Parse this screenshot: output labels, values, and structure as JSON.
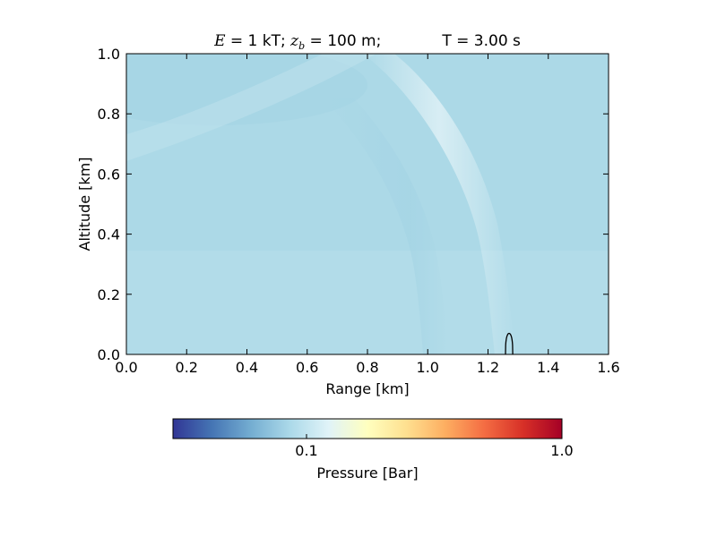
{
  "chart_data": {
    "type": "heatmap",
    "title": {
      "energy_symbol": "E",
      "energy_text": " = 1 kT; ",
      "depth_symbol": "z",
      "depth_subscript": "b",
      "depth_text": " = 100 m;",
      "time_text": "T =  3.00 s"
    },
    "xlabel": "Range [km]",
    "ylabel": "Altitude [km]",
    "xlim": [
      0.0,
      1.6
    ],
    "ylim": [
      0.0,
      1.0
    ],
    "xticks": [
      "0.0",
      "0.2",
      "0.4",
      "0.6",
      "0.8",
      "1.0",
      "1.2",
      "1.4",
      "1.6"
    ],
    "yticks": [
      "0.0",
      "0.2",
      "0.4",
      "0.6",
      "0.8",
      "1.0"
    ],
    "grid": false,
    "field_description_values": {
      "background_pressure_bar": 0.09,
      "shock_front_range_km_at_ground": 1.18,
      "shock_front_range_km_at_top": 0.9
    },
    "contour": {
      "center_range_km": 1.27,
      "max_altitude_km": 0.07,
      "half_width_km": 0.012
    },
    "colorbar": {
      "label": "Pressure [Bar]",
      "scale": "log",
      "min": 0.03,
      "max": 1.0,
      "ticks": [
        "0.1",
        "1.0"
      ],
      "tick_values": [
        0.1,
        1.0
      ],
      "colormap": "RdYlBu_r",
      "colors": [
        "#313695",
        "#4575b4",
        "#74add1",
        "#abd9e9",
        "#e0f3f8",
        "#ffffbf",
        "#fee090",
        "#fdae61",
        "#f46d43",
        "#d73027",
        "#a50026"
      ]
    }
  }
}
